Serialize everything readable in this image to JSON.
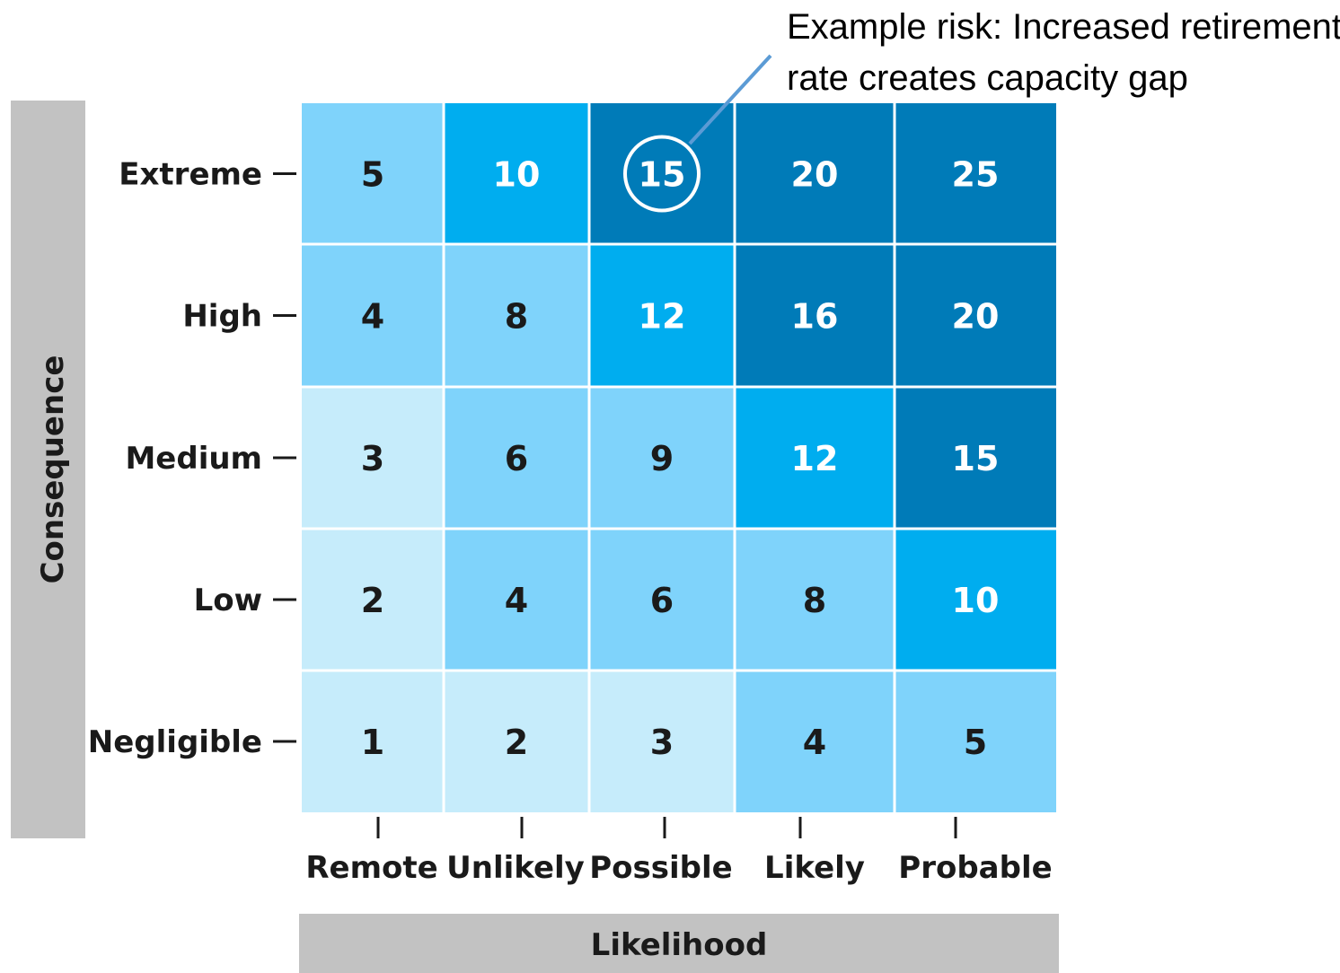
{
  "chart_data": {
    "type": "heatmap",
    "title": "",
    "xlabel": "Likelihood",
    "ylabel": "Consequence",
    "x_categories": [
      "Remote",
      "Unlikely",
      "Possible",
      "Likely",
      "Probable"
    ],
    "y_categories": [
      "Extreme",
      "High",
      "Medium",
      "Low",
      "Negligible"
    ],
    "values": [
      [
        5,
        10,
        15,
        20,
        25
      ],
      [
        4,
        8,
        12,
        16,
        20
      ],
      [
        3,
        6,
        9,
        12,
        15
      ],
      [
        2,
        4,
        6,
        8,
        10
      ],
      [
        1,
        2,
        3,
        4,
        5
      ]
    ],
    "color_scale": [
      {
        "min": 1,
        "max": 3,
        "color": "#c6ecfb"
      },
      {
        "min": 4,
        "max": 8,
        "color": "#7fd3fb"
      },
      {
        "min": 9,
        "max": 9,
        "color": "#7fd3fb"
      },
      {
        "min": 10,
        "max": 12,
        "color": "#00adef"
      },
      {
        "min": 15,
        "max": 25,
        "color": "#007bb8"
      }
    ],
    "highlight": {
      "row": 0,
      "col": 2,
      "value": 15
    },
    "annotation": {
      "lines": [
        "Example risk: Increased retirement",
        "rate creates capacity gap"
      ],
      "points_to": {
        "row": 0,
        "col": 2
      }
    }
  },
  "colors": {
    "axis_bar": "#c2c2c2",
    "grid_line": "#ffffff",
    "dark_text": "#1a1a1a",
    "light_text": "#ffffff",
    "leader_line": "#5b9bd5"
  }
}
